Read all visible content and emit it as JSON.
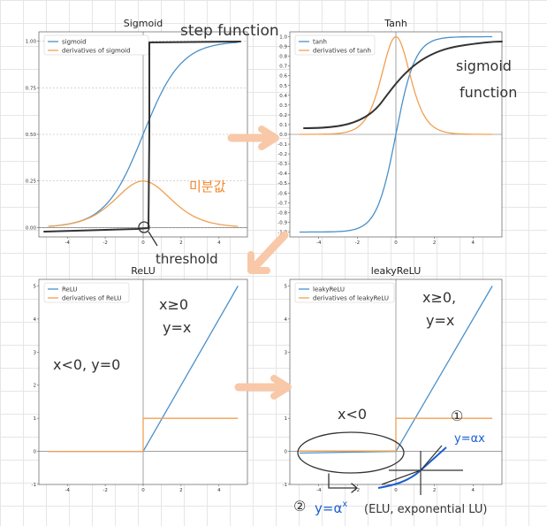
{
  "colors": {
    "primary": "#4a90c9",
    "secondary": "#f0a050",
    "ink": "#333333",
    "orange_ink": "#f08a30",
    "blue_ink": "#1a5fd0",
    "arrow": "#f8c8a8"
  },
  "chart_data": [
    {
      "type": "line",
      "title": "Sigmoid",
      "xlim": [
        -5.5,
        5.5
      ],
      "ylim": [
        -0.05,
        1.05
      ],
      "xticks": [
        -4,
        -2,
        0,
        2,
        4
      ],
      "xtick_labels": [
        "-4",
        "-2",
        "0",
        "2",
        "4"
      ],
      "yticks": [
        0,
        0.25,
        0.5,
        0.75,
        1.0
      ],
      "ytick_labels": [
        "0.00",
        "0.25",
        "0.50",
        "0.75",
        "1.00"
      ],
      "grid": "dashed horizontal at ticks",
      "legend": "top-left",
      "series": [
        {
          "name": "sigmoid",
          "x": [
            -5,
            -4,
            -3,
            -2,
            -1,
            0,
            1,
            2,
            3,
            4,
            5
          ],
          "y": [
            0.007,
            0.018,
            0.047,
            0.119,
            0.269,
            0.5,
            0.731,
            0.881,
            0.953,
            0.982,
            0.993
          ]
        },
        {
          "name": "derivatives of sigmoid",
          "x": [
            -5,
            -4,
            -3,
            -2,
            -1,
            0,
            1,
            2,
            3,
            4,
            5
          ],
          "y": [
            0.007,
            0.018,
            0.045,
            0.105,
            0.197,
            0.25,
            0.197,
            0.105,
            0.045,
            0.018,
            0.007
          ]
        }
      ]
    },
    {
      "type": "line",
      "title": "Tanh",
      "xlim": [
        -5.5,
        5.5
      ],
      "ylim": [
        -1.05,
        1.05
      ],
      "xticks": [
        -4,
        -2,
        0,
        2,
        4
      ],
      "xtick_labels": [
        "-4",
        "-2",
        "0",
        "2",
        "4"
      ],
      "yticks": [
        -1.0,
        -0.9,
        -0.8,
        -0.7,
        -0.6,
        -0.5,
        -0.4,
        -0.3,
        -0.2,
        -0.1,
        0.0,
        0.1,
        0.2,
        0.3,
        0.4,
        0.5,
        0.6,
        0.7,
        0.8,
        0.9,
        1.0
      ],
      "ytick_labels": [
        "-1.0",
        "-0.9",
        "-0.8",
        "-0.7",
        "-0.6",
        "-0.5",
        "-0.4",
        "-0.3",
        "-0.2",
        "-0.1",
        "0.0",
        "0.1",
        "0.2",
        "0.3",
        "0.4",
        "0.5",
        "0.6",
        "0.7",
        "0.8",
        "0.9",
        "1.0"
      ],
      "legend": "top-left",
      "series": [
        {
          "name": "tanh",
          "x": [
            -5,
            -4,
            -3,
            -2,
            -1.5,
            -1,
            -0.5,
            0,
            0.5,
            1,
            1.5,
            2,
            3,
            4,
            5
          ],
          "y": [
            -1.0,
            -0.999,
            -0.995,
            -0.964,
            -0.905,
            -0.762,
            -0.462,
            0,
            0.462,
            0.762,
            0.905,
            0.964,
            0.995,
            0.999,
            1.0
          ]
        },
        {
          "name": "derivatives of tanh",
          "x": [
            -5,
            -4,
            -3,
            -2,
            -1.5,
            -1,
            -0.5,
            0,
            0.5,
            1,
            1.5,
            2,
            3,
            4,
            5
          ],
          "y": [
            0.0,
            0.001,
            0.01,
            0.071,
            0.181,
            0.42,
            0.786,
            1.0,
            0.786,
            0.42,
            0.181,
            0.071,
            0.01,
            0.001,
            0.0
          ]
        }
      ]
    },
    {
      "type": "line",
      "title": "ReLU",
      "xlim": [
        -5.5,
        5.5
      ],
      "ylim": [
        -1,
        5.2
      ],
      "xticks": [
        -4,
        -2,
        0,
        2,
        4
      ],
      "xtick_labels": [
        "-4",
        "-2",
        "0",
        "2",
        "4"
      ],
      "yticks": [
        -1,
        0,
        1,
        2,
        3,
        4,
        5
      ],
      "ytick_labels": [
        "-1",
        "0",
        "1",
        "2",
        "3",
        "4",
        "5"
      ],
      "legend": "top-left",
      "series": [
        {
          "name": "ReLU",
          "x": [
            -5,
            0,
            5
          ],
          "y": [
            0,
            0,
            5
          ]
        },
        {
          "name": "derivatives of ReLU",
          "x": [
            -5,
            0,
            0,
            5
          ],
          "y": [
            0,
            0,
            1,
            1
          ]
        }
      ]
    },
    {
      "type": "line",
      "title": "leakyReLU",
      "xlim": [
        -5.5,
        5.5
      ],
      "ylim": [
        -1,
        5.2
      ],
      "xticks": [
        -4,
        -2,
        0,
        2,
        4
      ],
      "xtick_labels": [
        "-4",
        "-2",
        "0",
        "2",
        "4"
      ],
      "yticks": [
        -1,
        0,
        1,
        2,
        3,
        4,
        5
      ],
      "ytick_labels": [
        "-1",
        "0",
        "1",
        "2",
        "3",
        "4",
        "5"
      ],
      "legend": "top-left",
      "series": [
        {
          "name": "leakyReLU",
          "x": [
            -5,
            0,
            5
          ],
          "y": [
            -0.05,
            0,
            5
          ]
        },
        {
          "name": "derivatives of leakyReLU",
          "x": [
            -5,
            0,
            0,
            5
          ],
          "y": [
            0.01,
            0.01,
            1,
            1
          ]
        }
      ]
    }
  ],
  "annotations": {
    "step_function": "step function",
    "korean_note": "미분값",
    "threshold": "threshold",
    "sigmoid_function": [
      "sigmoid",
      "function"
    ],
    "relu_pos": [
      "x≥0",
      "y=x"
    ],
    "relu_neg": "x<0, y=0",
    "leaky_pos": [
      "x≥0,",
      "y=x"
    ],
    "leaky_neg": "x<0",
    "circle_one": "①",
    "circle_two": "②",
    "y_ax_blue": "y=αx",
    "elu_formula": "y=α",
    "elu_sup": "x",
    "elu_note": "(ELU, exponential LU)"
  }
}
